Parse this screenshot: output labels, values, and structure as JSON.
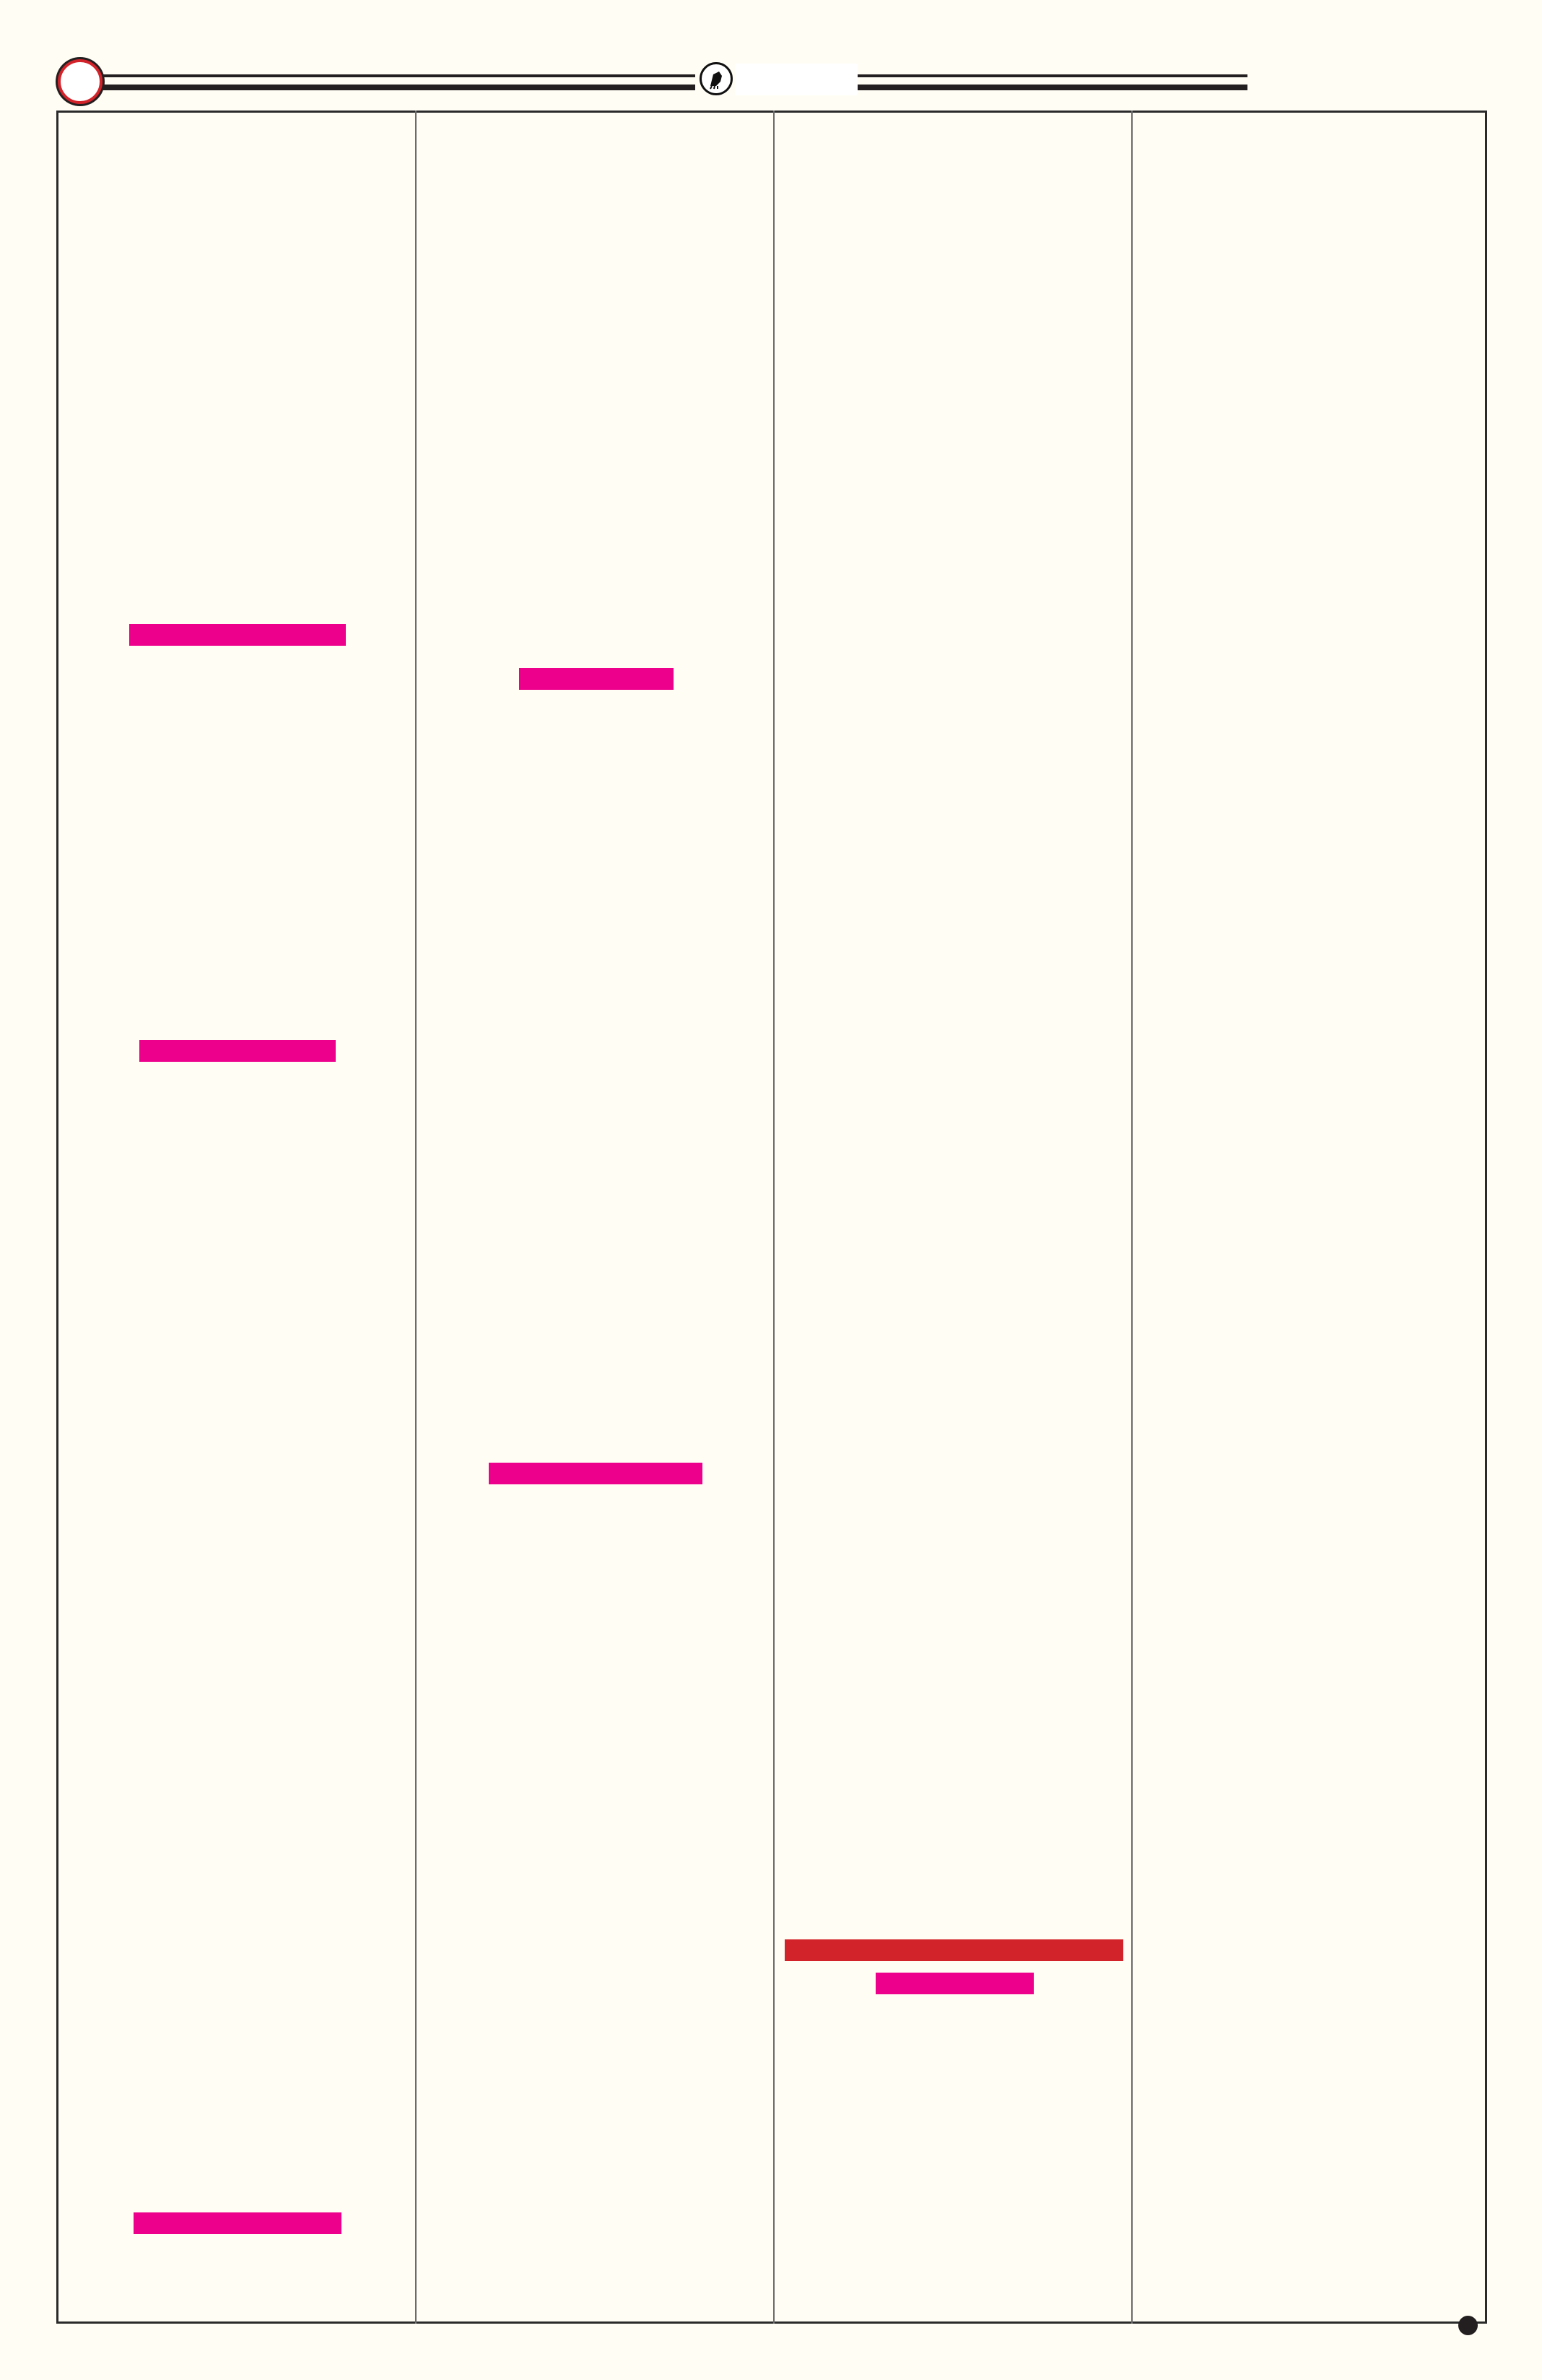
{
  "colors": {
    "background": "#fffdf4",
    "frame": "#2a2a2a",
    "highlight_pink": "#ec008c",
    "highlight_red": "#d2232a",
    "ornament_ring": "#d2232a"
  },
  "header": {
    "left_ornament_icon": "red-ring-icon",
    "center_emblem_icon": "emblem-medallion-icon"
  },
  "columns": 4,
  "footer": {
    "corner_marker_icon": "filled-circle-icon"
  }
}
